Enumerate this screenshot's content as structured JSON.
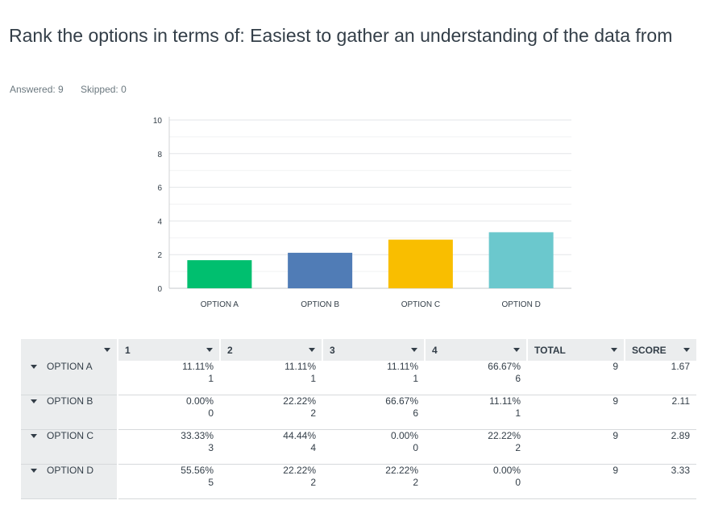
{
  "question": {
    "title": "Rank the options in terms of: Easiest to gather an understanding of the data from"
  },
  "stats": {
    "answered": "Answered: 9",
    "skipped": "Skipped: 0"
  },
  "chart_data": {
    "type": "bar",
    "categories": [
      "OPTION A",
      "OPTION B",
      "OPTION C",
      "OPTION D"
    ],
    "values": [
      1.67,
      2.11,
      2.89,
      3.33
    ],
    "colors": [
      "#00bf6f",
      "#507cb6",
      "#f9be00",
      "#6bc8cd"
    ],
    "ylim": [
      0,
      10
    ],
    "yticks": [
      "0",
      "2",
      "4",
      "6",
      "8",
      "10"
    ],
    "grid": true
  },
  "table": {
    "headers": [
      "",
      "1",
      "2",
      "3",
      "4",
      "TOTAL",
      "SCORE"
    ],
    "rows": [
      {
        "label": "OPTION A",
        "cells": [
          {
            "pct": "11.11%",
            "count": "1"
          },
          {
            "pct": "11.11%",
            "count": "1"
          },
          {
            "pct": "11.11%",
            "count": "1"
          },
          {
            "pct": "66.67%",
            "count": "6"
          }
        ],
        "total": "9",
        "score": "1.67"
      },
      {
        "label": "OPTION B",
        "cells": [
          {
            "pct": "0.00%",
            "count": "0"
          },
          {
            "pct": "22.22%",
            "count": "2"
          },
          {
            "pct": "66.67%",
            "count": "6"
          },
          {
            "pct": "11.11%",
            "count": "1"
          }
        ],
        "total": "9",
        "score": "2.11"
      },
      {
        "label": "OPTION C",
        "cells": [
          {
            "pct": "33.33%",
            "count": "3"
          },
          {
            "pct": "44.44%",
            "count": "4"
          },
          {
            "pct": "0.00%",
            "count": "0"
          },
          {
            "pct": "22.22%",
            "count": "2"
          }
        ],
        "total": "9",
        "score": "2.89"
      },
      {
        "label": "OPTION D",
        "cells": [
          {
            "pct": "55.56%",
            "count": "5"
          },
          {
            "pct": "22.22%",
            "count": "2"
          },
          {
            "pct": "22.22%",
            "count": "2"
          },
          {
            "pct": "0.00%",
            "count": "0"
          }
        ],
        "total": "9",
        "score": "3.33"
      }
    ]
  }
}
